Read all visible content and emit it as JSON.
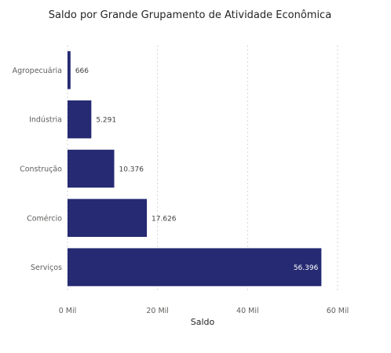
{
  "chart_data": {
    "type": "bar",
    "orientation": "horizontal",
    "title": "Saldo por Grande Grupamento de Atividade Econômica",
    "xlabel": "Saldo",
    "ylabel": "",
    "categories": [
      "Agropecuária",
      "Indústria",
      "Construção",
      "Comércio",
      "Serviços"
    ],
    "values": [
      666,
      5291,
      10376,
      17626,
      56396
    ],
    "data_labels": [
      "666",
      "5.291",
      "10.376",
      "17.626",
      "56.396"
    ],
    "xlim": [
      0,
      60000
    ],
    "x_ticks": [
      0,
      20000,
      40000,
      60000
    ],
    "x_tick_labels": [
      "0 Mil",
      "20 Mil",
      "40 Mil",
      "60 Mil"
    ],
    "grid": true,
    "bar_color": "#252A72"
  }
}
